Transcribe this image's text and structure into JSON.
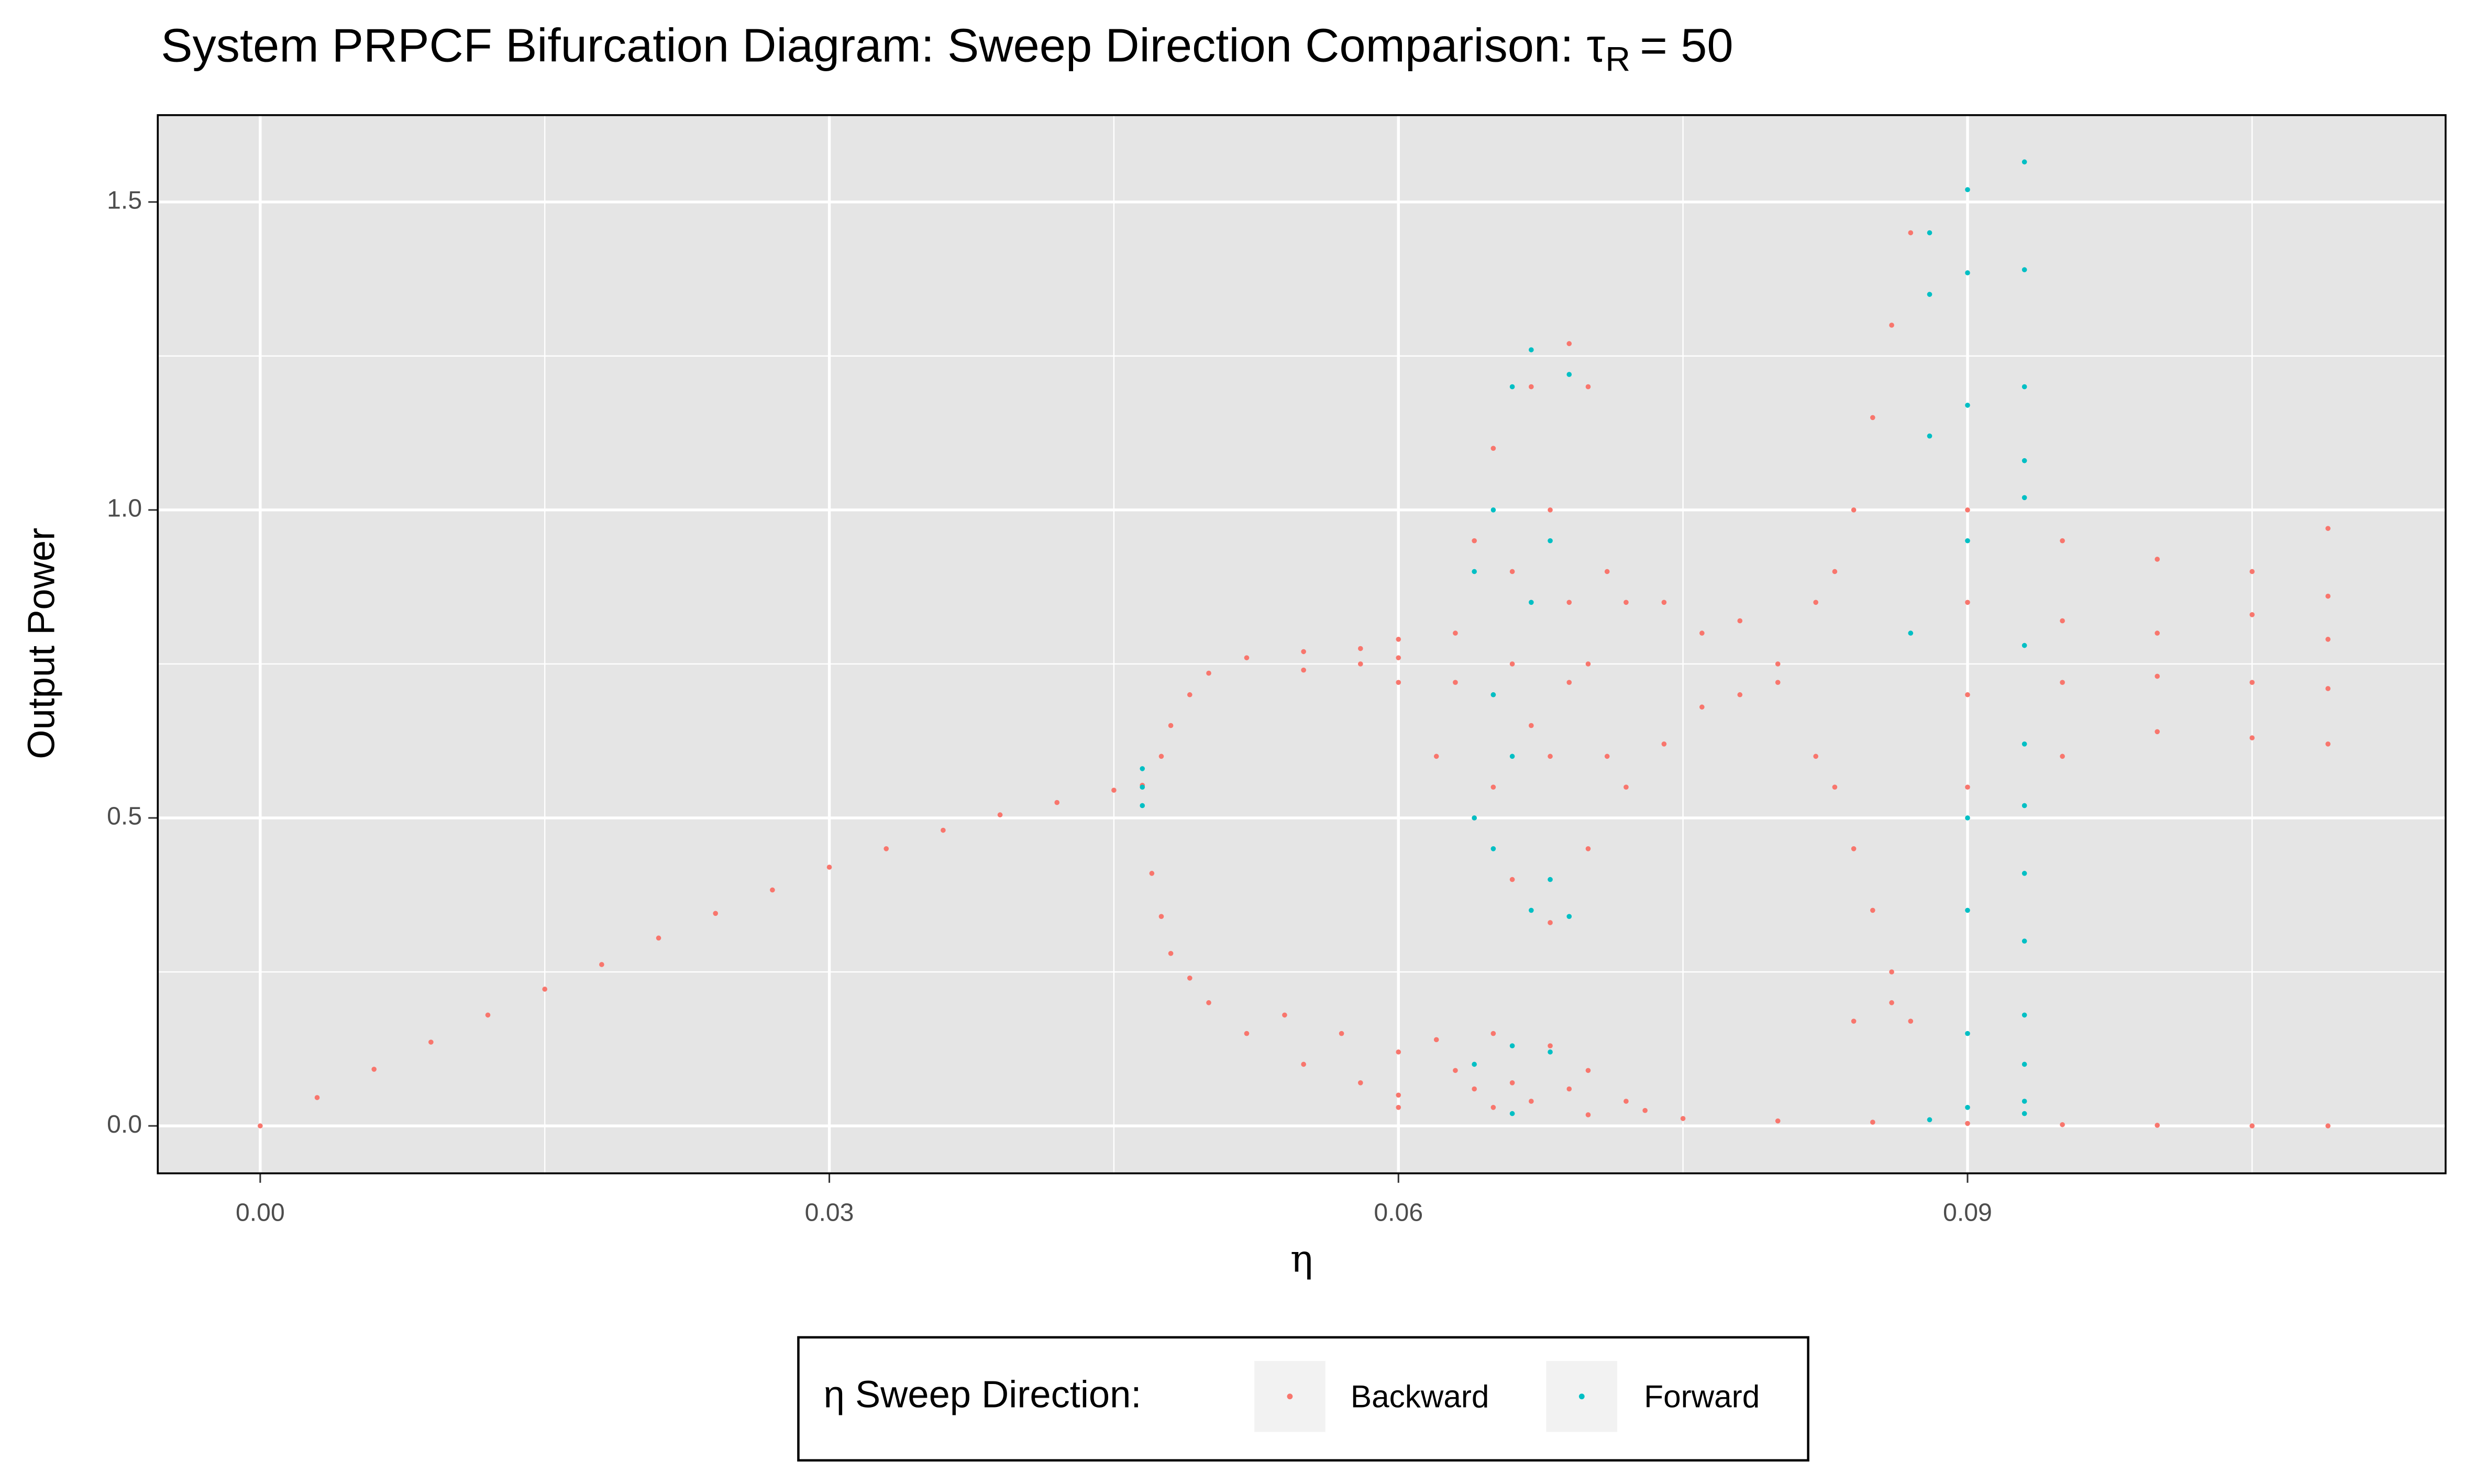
{
  "chart_data": {
    "type": "scatter",
    "title": "System PRPCF Bifurcation Diagram: Sweep Direction Comparison:  τ",
    "title_subscript": "R",
    "title_suffix": "= 50",
    "xlabel": "η",
    "ylabel": "Output Power",
    "legend_title": "η Sweep Direction:",
    "legend_position": "bottom",
    "grid": true,
    "xlim": [
      -0.0054,
      0.1152
    ],
    "ylim": [
      -0.077,
      1.641
    ],
    "xticks": [
      {
        "value": 0,
        "label": "0.00"
      },
      0.03,
      0.06,
      0.09
    ],
    "yticks": [
      {
        "value": 0,
        "label": "0.0"
      },
      0.5,
      {
        "value": 1,
        "label": "1.0"
      },
      1.5
    ],
    "x_minor_ticks": [
      0.015,
      0.045,
      0.075,
      0.105
    ],
    "y_minor_ticks": [
      0.25,
      0.75,
      1.25
    ],
    "series": [
      {
        "name": "Backward",
        "color": "#F8766D",
        "x": [
          0,
          0.003,
          0.006,
          0.009,
          0.012,
          0.015,
          0.018,
          0.021,
          0.024,
          0.027,
          0.03,
          0.033,
          0.036,
          0.039,
          0.042,
          0.045,
          0.0465,
          0.0475,
          0.048,
          0.049,
          0.05,
          0.052,
          0.055,
          0.058,
          0.06,
          0.055,
          0.058,
          0.06,
          0.06,
          0.047,
          0.0475,
          0.048,
          0.049,
          0.05,
          0.052,
          0.055,
          0.058,
          0.06,
          0.065,
          0.07,
          0.075,
          0.08,
          0.085,
          0.09,
          0.095,
          0.1,
          0.105,
          0.109,
          0.054,
          0.057,
          0.06,
          0.063,
          0.066,
          0.069,
          0.072,
          0.062,
          0.065,
          0.068,
          0.07,
          0.064,
          0.067,
          0.06,
          0.073,
          0.062,
          0.063,
          0.064,
          0.064,
          0.065,
          0.065,
          0.066,
          0.066,
          0.067,
          0.067,
          0.068,
          0.068,
          0.069,
          0.069,
          0.07,
          0.07,
          0.071,
          0.071,
          0.072,
          0.072,
          0.063,
          0.066,
          0.069,
          0.065,
          0.068,
          0.07,
          0.074,
          0.074,
          0.076,
          0.076,
          0.078,
          0.078,
          0.08,
          0.08,
          0.082,
          0.082,
          0.083,
          0.083,
          0.084,
          0.084,
          0.085,
          0.085,
          0.086,
          0.086,
          0.087,
          0.087,
          0.084,
          0.086,
          0.09,
          0.09,
          0.09,
          0.09,
          0.095,
          0.095,
          0.095,
          0.095,
          0.1,
          0.1,
          0.1,
          0.1,
          0.105,
          0.105,
          0.105,
          0.105,
          0.109,
          0.109,
          0.109,
          0.109,
          0.109
        ],
        "values": [
          0,
          0.046,
          0.092,
          0.136,
          0.18,
          0.222,
          0.262,
          0.305,
          0.345,
          0.383,
          0.42,
          0.45,
          0.48,
          0.505,
          0.525,
          0.545,
          0.553,
          0.6,
          0.65,
          0.7,
          0.735,
          0.76,
          0.77,
          0.775,
          0.79,
          0.74,
          0.75,
          0.72,
          0.76,
          0.41,
          0.34,
          0.28,
          0.24,
          0.2,
          0.15,
          0.1,
          0.07,
          0.05,
          0.03,
          0.018,
          0.012,
          0.008,
          0.006,
          0.004,
          0.002,
          0.001,
          0,
          0,
          0.18,
          0.15,
          0.12,
          0.09,
          0.07,
          0.06,
          0.04,
          0.14,
          0.15,
          0.13,
          0.09,
          0.06,
          0.04,
          0.03,
          0.025,
          0.6,
          0.8,
          0.95,
          0.5,
          1.1,
          0.7,
          0.4,
          0.9,
          1.2,
          0.65,
          0.33,
          1.0,
          1.27,
          0.72,
          1.2,
          0.45,
          0.9,
          0.6,
          0.85,
          0.55,
          0.72,
          0.75,
          0.85,
          0.55,
          0.6,
          0.75,
          0.85,
          0.62,
          0.8,
          0.68,
          0.82,
          0.7,
          0.75,
          0.72,
          0.85,
          0.6,
          0.9,
          0.55,
          1.0,
          0.45,
          1.15,
          0.35,
          1.3,
          0.25,
          1.45,
          0.17,
          0.17,
          0.2,
          1.0,
          0.85,
          0.7,
          0.55,
          0.95,
          0.82,
          0.72,
          0.6,
          0.92,
          0.8,
          0.73,
          0.64,
          0.9,
          0.83,
          0.72,
          0.63,
          0.97,
          0.86,
          0.79,
          0.71,
          0.62
        ]
      },
      {
        "name": "Forward",
        "color": "#00BFC4",
        "x": [
          0.0465,
          0.0465,
          0.0465,
          0.064,
          0.064,
          0.065,
          0.065,
          0.065,
          0.066,
          0.066,
          0.067,
          0.067,
          0.067,
          0.068,
          0.068,
          0.069,
          0.069,
          0.064,
          0.066,
          0.068,
          0.066,
          0.087,
          0.088,
          0.09,
          0.093,
          0.088,
          0.09,
          0.093,
          0.088,
          0.093,
          0.09,
          0.093,
          0.093,
          0.09,
          0.093,
          0.093,
          0.09,
          0.093,
          0.093,
          0.09,
          0.093,
          0.093,
          0.09,
          0.093,
          0.093,
          0.09,
          0.093,
          0.088
        ],
        "values": [
          0.52,
          0.55,
          0.58,
          0.5,
          0.9,
          0.45,
          1.0,
          0.7,
          1.2,
          0.6,
          0.35,
          1.26,
          0.85,
          0.4,
          0.95,
          1.22,
          0.34,
          0.1,
          0.13,
          0.12,
          0.02,
          0.8,
          1.45,
          1.52,
          1.565,
          1.35,
          1.385,
          1.39,
          1.12,
          1.2,
          1.17,
          1.08,
          1.02,
          0.95,
          0.78,
          0.62,
          0.5,
          0.52,
          0.41,
          0.35,
          0.3,
          0.18,
          0.15,
          0.1,
          0.04,
          0.03,
          0.02,
          0.01
        ]
      }
    ]
  }
}
